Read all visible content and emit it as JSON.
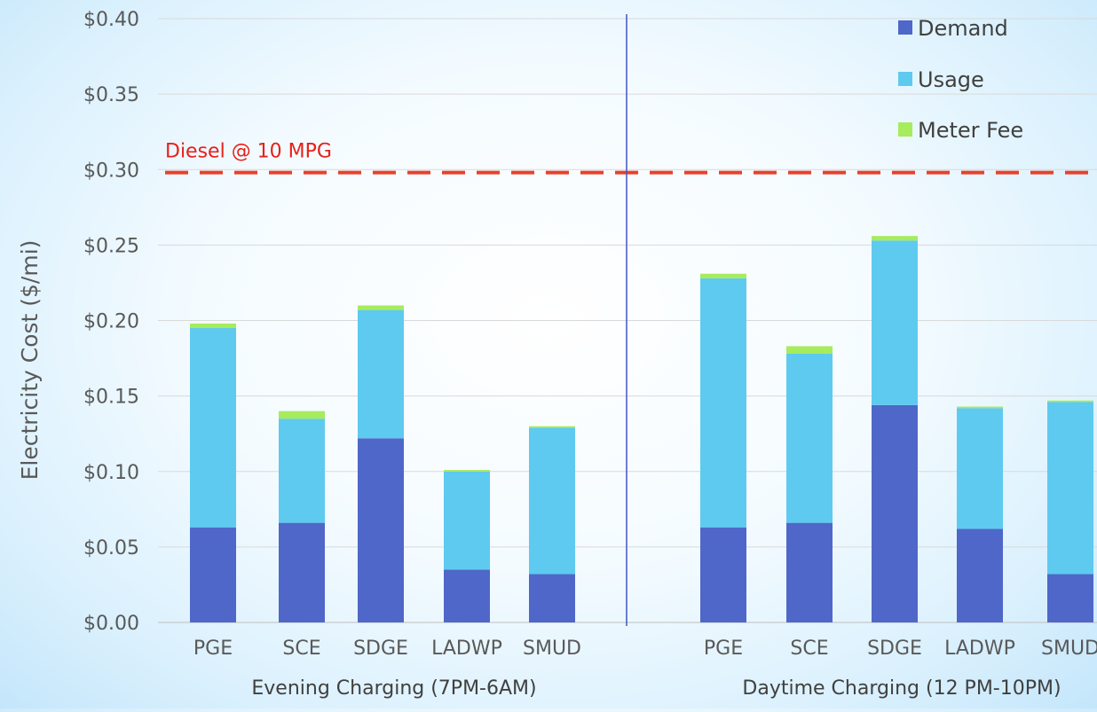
{
  "chart_data": {
    "type": "bar",
    "stacked": true,
    "ylabel": "Electricity Cost ($/mi)",
    "ylim": [
      0,
      0.4
    ],
    "yticks": [
      "$0.00",
      "$0.05",
      "$0.10",
      "$0.15",
      "$0.20",
      "$0.25",
      "$0.30",
      "$0.35",
      "$0.40"
    ],
    "ytick_values": [
      0,
      0.05,
      0.1,
      0.15,
      0.2,
      0.25,
      0.3,
      0.35,
      0.4
    ],
    "grid": true,
    "legend_position": "top-right",
    "groups": [
      {
        "label": "Evening Charging (7PM-6AM)",
        "categories": [
          "PGE",
          "SCE",
          "SDGE",
          "LADWP",
          "SMUD"
        ],
        "series": [
          {
            "name": "Demand",
            "values": [
              0.063,
              0.066,
              0.122,
              0.035,
              0.032
            ]
          },
          {
            "name": "Usage",
            "values": [
              0.132,
              0.069,
              0.085,
              0.065,
              0.097
            ]
          },
          {
            "name": "Meter Fee",
            "values": [
              0.003,
              0.005,
              0.003,
              0.001,
              0.001
            ]
          }
        ]
      },
      {
        "label": "Daytime Charging (12 PM-10PM)",
        "categories": [
          "PGE",
          "SCE",
          "SDGE",
          "LADWP",
          "SMUD"
        ],
        "series": [
          {
            "name": "Demand",
            "values": [
              0.063,
              0.066,
              0.144,
              0.062,
              0.032
            ]
          },
          {
            "name": "Usage",
            "values": [
              0.165,
              0.112,
              0.109,
              0.08,
              0.114
            ]
          },
          {
            "name": "Meter Fee",
            "values": [
              0.003,
              0.005,
              0.003,
              0.001,
              0.001
            ]
          }
        ]
      }
    ],
    "colors": {
      "Demand": "#4f67c9",
      "Usage": "#5ecaf0",
      "Meter Fee": "#a6ec5c",
      "reference": "#e8402a",
      "divider": "#3f55c4"
    },
    "reference_line": {
      "label": "Diesel @ 10 MPG",
      "value": 0.298
    }
  }
}
